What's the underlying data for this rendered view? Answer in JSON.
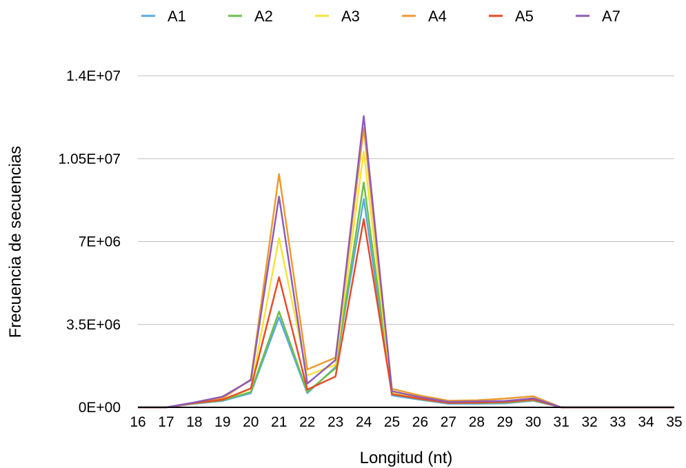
{
  "chart_data": {
    "type": "line",
    "title": "",
    "xlabel": "Longitud (nt)",
    "ylabel": "Frecuencia de secuencias",
    "ylim": [
      0,
      14000000
    ],
    "y_ticks": [
      0,
      3500000,
      7000000,
      10500000,
      14000000
    ],
    "y_tick_labels": [
      "0E+00",
      "3.5E+06",
      "7E+06",
      "1.05E+07",
      "1.4E+07"
    ],
    "grid": true,
    "legend_position": "top",
    "categories": [
      "16",
      "17",
      "18",
      "19",
      "20",
      "21",
      "22",
      "23",
      "24",
      "25",
      "26",
      "27",
      "28",
      "29",
      "30",
      "31",
      "32",
      "33",
      "34",
      "35"
    ],
    "series": [
      {
        "name": "A1",
        "color": "#5aa9e6",
        "values": [
          0,
          0,
          150000,
          270000,
          600000,
          3800000,
          600000,
          1700000,
          8800000,
          500000,
          320000,
          150000,
          150000,
          170000,
          280000,
          0,
          0,
          0,
          0,
          0
        ]
      },
      {
        "name": "A2",
        "color": "#6cbf4a",
        "values": [
          0,
          0,
          170000,
          300000,
          650000,
          4050000,
          650000,
          1650000,
          9500000,
          550000,
          350000,
          180000,
          180000,
          200000,
          300000,
          0,
          0,
          0,
          0,
          0
        ]
      },
      {
        "name": "A3",
        "color": "#f5e33a",
        "values": [
          0,
          0,
          180000,
          330000,
          780000,
          7150000,
          1350000,
          1800000,
          10800000,
          600000,
          380000,
          200000,
          210000,
          230000,
          330000,
          0,
          0,
          0,
          0,
          0
        ]
      },
      {
        "name": "A4",
        "color": "#eb9a2e",
        "values": [
          0,
          0,
          200000,
          380000,
          1180000,
          9850000,
          1600000,
          2100000,
          11800000,
          780000,
          500000,
          280000,
          300000,
          370000,
          470000,
          0,
          0,
          0,
          0,
          0
        ]
      },
      {
        "name": "A5",
        "color": "#e84a27",
        "values": [
          0,
          0,
          180000,
          320000,
          800000,
          5500000,
          750000,
          1300000,
          7950000,
          560000,
          360000,
          190000,
          200000,
          230000,
          330000,
          0,
          0,
          0,
          0,
          0
        ]
      },
      {
        "name": "A7",
        "color": "#8e5bb4",
        "values": [
          0,
          0,
          210000,
          450000,
          1150000,
          8900000,
          1000000,
          2000000,
          12300000,
          680000,
          430000,
          230000,
          250000,
          270000,
          380000,
          0,
          0,
          0,
          0,
          0
        ]
      }
    ]
  }
}
